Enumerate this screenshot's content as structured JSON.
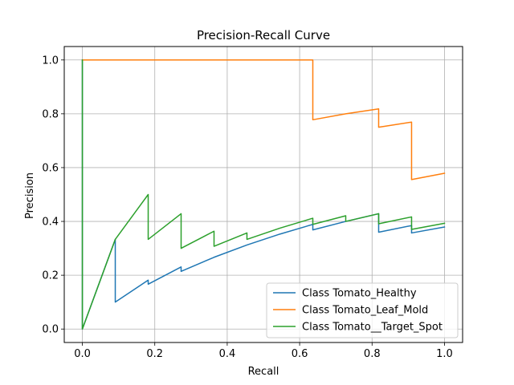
{
  "chart_data": {
    "type": "line",
    "title": "Precision-Recall Curve",
    "xlabel": "Recall",
    "ylabel": "Precision",
    "xlim": [
      -0.05,
      1.05
    ],
    "ylim": [
      -0.05,
      1.05
    ],
    "xticks": [
      0.0,
      0.2,
      0.4,
      0.6,
      0.8,
      1.0
    ],
    "yticks": [
      0.0,
      0.2,
      0.4,
      0.6,
      0.8,
      1.0
    ],
    "xtick_labels": [
      "0.0",
      "0.2",
      "0.4",
      "0.6",
      "0.8",
      "1.0"
    ],
    "ytick_labels": [
      "0.0",
      "0.2",
      "0.4",
      "0.6",
      "0.8",
      "1.0"
    ],
    "grid": true,
    "legend_position": "lower-right",
    "series": [
      {
        "name": "Class Tomato_Healthy",
        "color": "#1f77b4",
        "points": [
          [
            0.0,
            1.0
          ],
          [
            0.0,
            0.0
          ],
          [
            0.0909,
            0.3333
          ],
          [
            0.0909,
            0.1
          ],
          [
            0.1818,
            0.1818
          ],
          [
            0.1818,
            0.1667
          ],
          [
            0.2727,
            0.2308
          ],
          [
            0.2727,
            0.2143
          ],
          [
            0.3636,
            0.2667
          ],
          [
            0.4545,
            0.3125
          ],
          [
            0.5455,
            0.3529
          ],
          [
            0.6364,
            0.3889
          ],
          [
            0.6364,
            0.3684
          ],
          [
            0.7273,
            0.4
          ],
          [
            0.8182,
            0.4286
          ],
          [
            0.8182,
            0.36
          ],
          [
            0.9091,
            0.3846
          ],
          [
            0.9091,
            0.3571
          ],
          [
            1.0,
            0.3793
          ]
        ]
      },
      {
        "name": "Class Tomato_Leaf_Mold",
        "color": "#ff7f0e",
        "points": [
          [
            0.0,
            1.0
          ],
          [
            0.0,
            1.0
          ],
          [
            0.6364,
            1.0
          ],
          [
            0.6364,
            0.7778
          ],
          [
            0.7273,
            0.8
          ],
          [
            0.8182,
            0.8182
          ],
          [
            0.8182,
            0.75
          ],
          [
            0.9091,
            0.7692
          ],
          [
            0.9091,
            0.5556
          ],
          [
            1.0,
            0.5789
          ]
        ]
      },
      {
        "name": "Class Tomato__Target_Spot",
        "color": "#2ca02c",
        "points": [
          [
            0.0,
            1.0
          ],
          [
            0.0,
            0.0
          ],
          [
            0.0909,
            0.3333
          ],
          [
            0.1818,
            0.5
          ],
          [
            0.1818,
            0.3333
          ],
          [
            0.2727,
            0.4286
          ],
          [
            0.2727,
            0.3
          ],
          [
            0.3636,
            0.3636
          ],
          [
            0.3636,
            0.3077
          ],
          [
            0.4545,
            0.3571
          ],
          [
            0.4545,
            0.3333
          ],
          [
            0.5455,
            0.375
          ],
          [
            0.6364,
            0.4118
          ],
          [
            0.6364,
            0.3889
          ],
          [
            0.7273,
            0.4211
          ],
          [
            0.7273,
            0.4
          ],
          [
            0.8182,
            0.4286
          ],
          [
            0.8182,
            0.3913
          ],
          [
            0.9091,
            0.4167
          ],
          [
            0.9091,
            0.3704
          ],
          [
            1.0,
            0.3929
          ]
        ]
      }
    ]
  }
}
